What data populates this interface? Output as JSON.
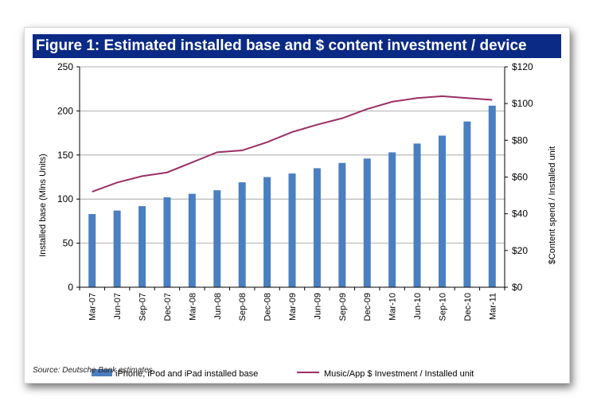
{
  "chart_data": {
    "type": "bar+line",
    "title": "Figure 1: Estimated installed base and $ content investment / device",
    "source": "Source: Deutsche Bank estimates",
    "categories": [
      "Mar-07",
      "Jun-07",
      "Sep-07",
      "Dec-07",
      "Mar-08",
      "Jun-08",
      "Sep-08",
      "Dec-08",
      "Mar-09",
      "Jun-09",
      "Sep-09",
      "Dec-09",
      "Mar-10",
      "Jun-10",
      "Sep-10",
      "Dec-10",
      "Mar-11"
    ],
    "series": [
      {
        "name": "iPhone, iPod and iPad installed base",
        "type": "bar",
        "axis": "left",
        "color": "#4a7fc1",
        "values": [
          83,
          87,
          92,
          102,
          106,
          110,
          119,
          125,
          129,
          135,
          141,
          146,
          153,
          163,
          172,
          188,
          206
        ]
      },
      {
        "name": "Music/App $ Investment / Installed unit",
        "type": "line",
        "axis": "right",
        "color": "#9b2f66",
        "values": [
          52,
          57,
          60.5,
          62.5,
          68,
          73.5,
          74.5,
          79,
          84.5,
          88.5,
          92,
          97,
          101,
          103,
          104,
          103,
          102
        ]
      }
    ],
    "ylabel": "Installed base (Mlns Units)",
    "y2label": "$Content spend  / Installed unit",
    "ylim": [
      0,
      250
    ],
    "yticks": [
      0,
      50,
      100,
      150,
      200,
      250
    ],
    "y2lim": [
      0,
      120
    ],
    "y2ticks": [
      "$0",
      "$20",
      "$40",
      "$60",
      "$80",
      "$100",
      "$120"
    ],
    "y2tick_values": [
      0,
      20,
      40,
      60,
      80,
      100,
      120
    ],
    "grid": true,
    "legend_position": "bottom"
  }
}
